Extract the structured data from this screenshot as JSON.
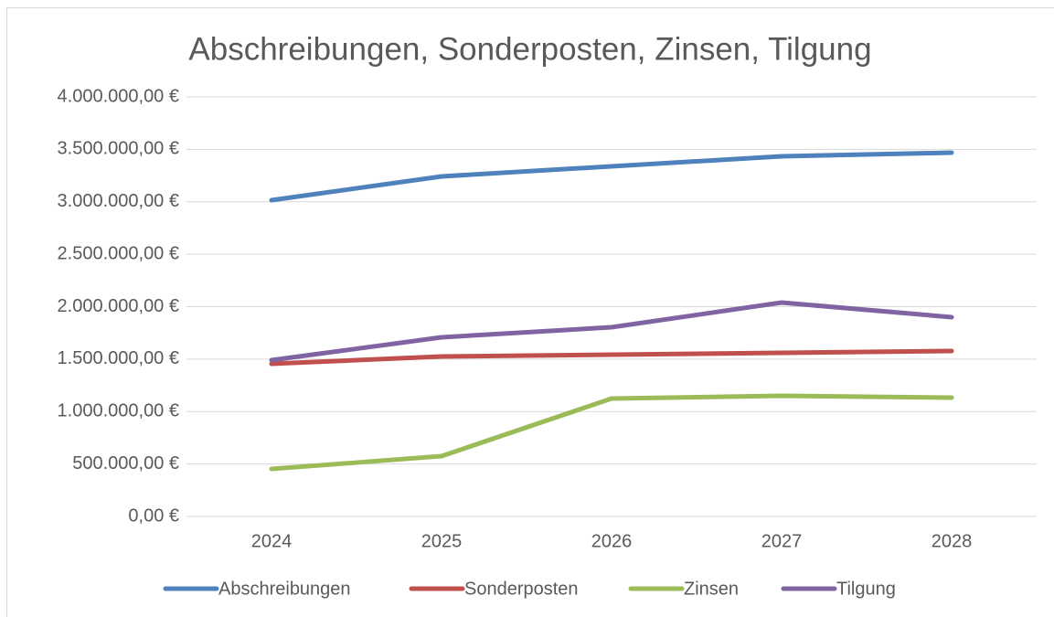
{
  "chart_data": {
    "type": "line",
    "title": "Abschreibungen, Sonderposten, Zinsen, Tilgung",
    "categories": [
      "2024",
      "2025",
      "2026",
      "2027",
      "2028"
    ],
    "series": [
      {
        "name": "Abschreibungen",
        "color": "#4f81bd",
        "values": [
          3015000,
          3242000,
          3338000,
          3434000,
          3468000
        ]
      },
      {
        "name": "Sonderposten",
        "color": "#c0504d",
        "values": [
          1455000,
          1525000,
          1542000,
          1560000,
          1577000
        ]
      },
      {
        "name": "Zinsen",
        "color": "#9bbb59",
        "values": [
          453000,
          575000,
          1124000,
          1150000,
          1133000
        ]
      },
      {
        "name": "Tilgung",
        "color": "#8064a2",
        "values": [
          1490000,
          1708000,
          1804000,
          2039000,
          1900000
        ]
      }
    ],
    "ylim": [
      0,
      4000000
    ],
    "yticks": [
      {
        "value": 0,
        "label": "0,00 €"
      },
      {
        "value": 500000,
        "label": "500.000,00 €"
      },
      {
        "value": 1000000,
        "label": "1.000.000,00 €"
      },
      {
        "value": 1500000,
        "label": "1.500.000,00 €"
      },
      {
        "value": 2000000,
        "label": "2.000.000,00 €"
      },
      {
        "value": 2500000,
        "label": "2.500.000,00 €"
      },
      {
        "value": 3000000,
        "label": "3.000.000,00 €"
      },
      {
        "value": 3500000,
        "label": "3.500.000,00 €"
      },
      {
        "value": 4000000,
        "label": "4.000.000,00 €"
      }
    ],
    "grid": true,
    "legend": "bottom"
  }
}
